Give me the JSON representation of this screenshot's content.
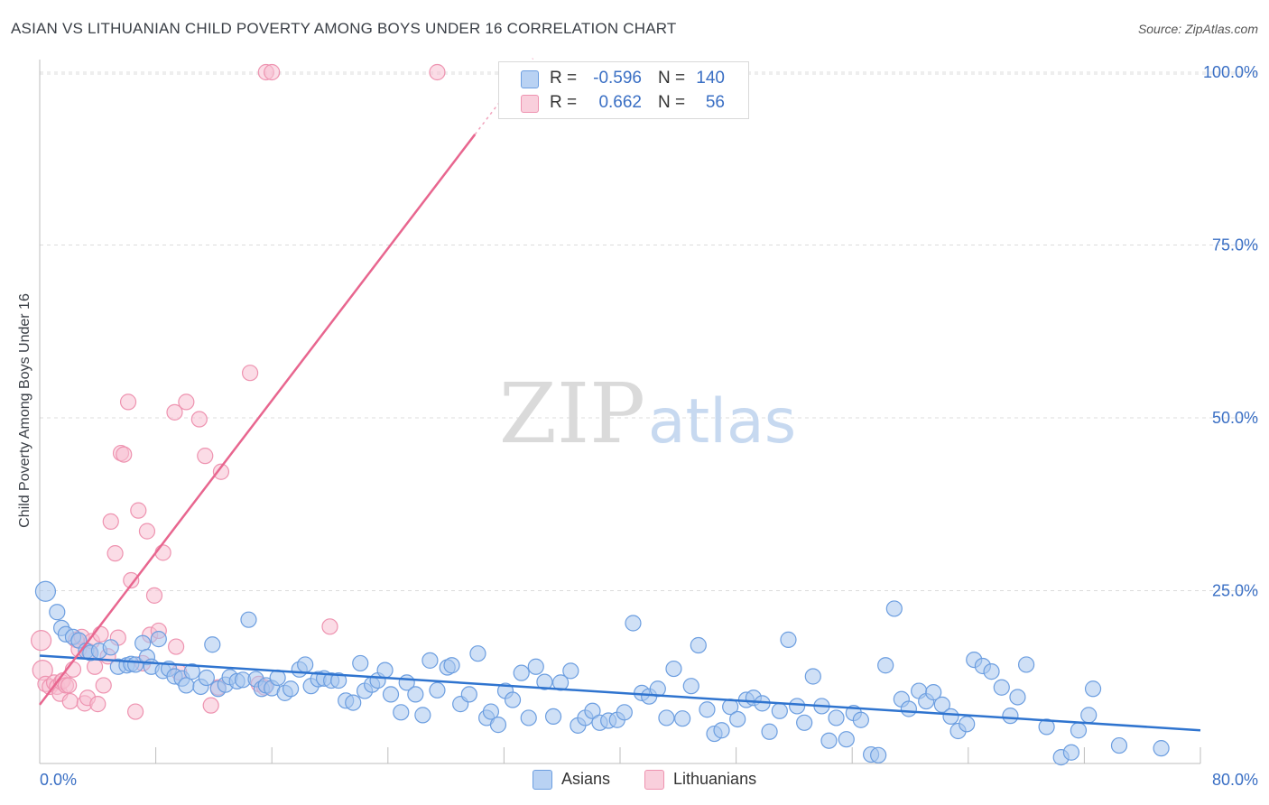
{
  "title": "ASIAN VS LITHUANIAN CHILD POVERTY AMONG BOYS UNDER 16 CORRELATION CHART",
  "source": "Source: ZipAtlas.com",
  "watermark": {
    "zip": "ZIP",
    "atlas": "atlas"
  },
  "legend": {
    "asians": {
      "r_label": "R =",
      "r_value": "-0.596",
      "n_label": "N =",
      "n_value": "140"
    },
    "lithuanians": {
      "r_label": "R =",
      "r_value": "0.662",
      "n_label": "N =",
      "n_value": "56"
    }
  },
  "bottom_legend": {
    "asians": "Asians",
    "lithuanians": "Lithuanians"
  },
  "colors": {
    "asian_fill": "#a8c6ee",
    "asian_stroke": "#6c9ee0",
    "asian_line": "#2f74cf",
    "lith_fill": "#f7c0d1",
    "lith_stroke": "#ee93b0",
    "lith_line": "#e8668f",
    "tick_label": "#3a6fc4",
    "grid": "#dcdcdc"
  },
  "chart_data": {
    "type": "scatter",
    "title": "ASIAN VS LITHUANIAN CHILD POVERTY AMONG BOYS UNDER 16 CORRELATION CHART",
    "xlabel": "",
    "ylabel": "Child Poverty Among Boys Under 16",
    "xlim": [
      0,
      80
    ],
    "ylim": [
      0,
      102
    ],
    "x_tick_labels": [
      "0.0%",
      "80.0%"
    ],
    "y_ticks": [
      25,
      50,
      75,
      100
    ],
    "y_tick_labels": [
      "25.0%",
      "50.0%",
      "75.0%",
      "100.0%"
    ],
    "grid": true,
    "legend_position": "top-center",
    "series": [
      {
        "name": "Asians",
        "r": -0.596,
        "n": 140,
        "trend": {
          "x": [
            0,
            80
          ],
          "y": [
            15.6,
            4.8
          ]
        },
        "points": [
          [
            0.4,
            24.9
          ],
          [
            1.2,
            21.9
          ],
          [
            1.5,
            19.6
          ],
          [
            1.8,
            18.7
          ],
          [
            2.3,
            18.3
          ],
          [
            2.7,
            17.8
          ],
          [
            3.2,
            16.3
          ],
          [
            3.5,
            16.0
          ],
          [
            4.1,
            16.3
          ],
          [
            4.9,
            16.8
          ],
          [
            5.4,
            14.0
          ],
          [
            6.0,
            14.2
          ],
          [
            6.3,
            14.4
          ],
          [
            6.6,
            14.3
          ],
          [
            7.1,
            17.4
          ],
          [
            7.4,
            15.4
          ],
          [
            7.7,
            14.0
          ],
          [
            8.2,
            18.0
          ],
          [
            8.5,
            13.4
          ],
          [
            8.9,
            13.7
          ],
          [
            9.3,
            12.6
          ],
          [
            9.8,
            12.3
          ],
          [
            10.1,
            11.3
          ],
          [
            10.5,
            13.3
          ],
          [
            11.1,
            11.1
          ],
          [
            11.5,
            12.4
          ],
          [
            11.9,
            17.2
          ],
          [
            12.3,
            10.8
          ],
          [
            12.8,
            11.4
          ],
          [
            13.1,
            12.5
          ],
          [
            13.6,
            11.9
          ],
          [
            14.0,
            12.1
          ],
          [
            14.4,
            20.8
          ],
          [
            14.9,
            12.2
          ],
          [
            15.3,
            10.8
          ],
          [
            15.6,
            11.3
          ],
          [
            16.0,
            10.9
          ],
          [
            16.4,
            12.4
          ],
          [
            16.9,
            10.2
          ],
          [
            17.3,
            10.8
          ],
          [
            17.9,
            13.6
          ],
          [
            18.3,
            14.3
          ],
          [
            18.7,
            11.2
          ],
          [
            19.2,
            12.2
          ],
          [
            19.6,
            12.3
          ],
          [
            20.1,
            12.0
          ],
          [
            20.6,
            12.0
          ],
          [
            21.1,
            9.1
          ],
          [
            21.6,
            8.8
          ],
          [
            22.1,
            14.5
          ],
          [
            22.4,
            10.5
          ],
          [
            22.9,
            11.4
          ],
          [
            23.3,
            12.0
          ],
          [
            23.8,
            13.5
          ],
          [
            24.2,
            10.0
          ],
          [
            24.9,
            7.4
          ],
          [
            25.3,
            11.7
          ],
          [
            25.9,
            10.0
          ],
          [
            26.4,
            7.0
          ],
          [
            26.9,
            14.9
          ],
          [
            27.4,
            10.6
          ],
          [
            28.1,
            13.9
          ],
          [
            28.4,
            14.2
          ],
          [
            29.0,
            8.6
          ],
          [
            29.6,
            10.0
          ],
          [
            30.2,
            15.9
          ],
          [
            30.8,
            6.6
          ],
          [
            31.1,
            7.5
          ],
          [
            31.6,
            5.6
          ],
          [
            32.1,
            10.5
          ],
          [
            32.6,
            9.2
          ],
          [
            33.2,
            13.1
          ],
          [
            33.7,
            6.6
          ],
          [
            34.2,
            14.0
          ],
          [
            34.8,
            11.8
          ],
          [
            35.4,
            6.8
          ],
          [
            35.9,
            11.7
          ],
          [
            36.6,
            13.4
          ],
          [
            37.1,
            5.5
          ],
          [
            37.6,
            6.6
          ],
          [
            38.1,
            7.6
          ],
          [
            38.6,
            5.9
          ],
          [
            39.2,
            6.2
          ],
          [
            39.8,
            6.3
          ],
          [
            40.3,
            7.4
          ],
          [
            40.9,
            20.3
          ],
          [
            41.5,
            10.2
          ],
          [
            42.0,
            9.7
          ],
          [
            42.6,
            10.8
          ],
          [
            43.2,
            6.6
          ],
          [
            43.7,
            13.7
          ],
          [
            44.3,
            6.5
          ],
          [
            44.9,
            11.2
          ],
          [
            45.4,
            17.1
          ],
          [
            46.0,
            7.8
          ],
          [
            46.5,
            4.3
          ],
          [
            47.0,
            4.8
          ],
          [
            47.6,
            8.2
          ],
          [
            48.1,
            6.4
          ],
          [
            48.7,
            9.2
          ],
          [
            49.2,
            9.5
          ],
          [
            49.8,
            8.7
          ],
          [
            50.3,
            4.6
          ],
          [
            51.0,
            7.6
          ],
          [
            51.6,
            17.9
          ],
          [
            52.2,
            8.3
          ],
          [
            52.7,
            5.9
          ],
          [
            53.3,
            12.6
          ],
          [
            53.9,
            8.3
          ],
          [
            54.4,
            3.3
          ],
          [
            54.9,
            6.6
          ],
          [
            55.6,
            3.5
          ],
          [
            56.1,
            7.3
          ],
          [
            56.6,
            6.3
          ],
          [
            57.3,
            1.3
          ],
          [
            57.8,
            1.2
          ],
          [
            58.3,
            14.2
          ],
          [
            58.9,
            22.4
          ],
          [
            59.4,
            9.3
          ],
          [
            59.9,
            7.9
          ],
          [
            60.6,
            10.5
          ],
          [
            61.1,
            9.0
          ],
          [
            61.6,
            10.3
          ],
          [
            62.2,
            8.5
          ],
          [
            62.8,
            6.8
          ],
          [
            63.3,
            4.7
          ],
          [
            63.9,
            5.7
          ],
          [
            64.4,
            15.0
          ],
          [
            65.0,
            14.1
          ],
          [
            65.6,
            13.3
          ],
          [
            66.3,
            11.0
          ],
          [
            66.9,
            6.9
          ],
          [
            67.4,
            9.6
          ],
          [
            68.0,
            14.3
          ],
          [
            69.4,
            5.3
          ],
          [
            70.4,
            0.9
          ],
          [
            71.1,
            1.6
          ],
          [
            71.6,
            4.8
          ],
          [
            72.3,
            7.0
          ],
          [
            72.6,
            10.8
          ],
          [
            74.4,
            2.6
          ],
          [
            77.3,
            2.2
          ]
        ]
      },
      {
        "name": "Lithuanians",
        "r": 0.662,
        "n": 56,
        "trend": {
          "x": [
            0,
            30
          ],
          "y": [
            8.5,
            91.0
          ]
        },
        "points": [
          [
            0.1,
            17.8
          ],
          [
            0.2,
            13.5
          ],
          [
            0.4,
            11.5
          ],
          [
            0.7,
            11.1
          ],
          [
            1.0,
            11.7
          ],
          [
            1.2,
            11.1
          ],
          [
            1.4,
            10.1
          ],
          [
            1.5,
            11.8
          ],
          [
            1.6,
            12.0
          ],
          [
            1.8,
            11.3
          ],
          [
            2.0,
            11.3
          ],
          [
            2.1,
            9.0
          ],
          [
            2.3,
            13.6
          ],
          [
            2.5,
            17.9
          ],
          [
            2.7,
            16.5
          ],
          [
            2.9,
            18.3
          ],
          [
            3.1,
            8.7
          ],
          [
            3.3,
            9.5
          ],
          [
            3.4,
            16.2
          ],
          [
            3.6,
            17.7
          ],
          [
            3.8,
            14.0
          ],
          [
            4.0,
            8.6
          ],
          [
            4.2,
            18.7
          ],
          [
            4.4,
            11.3
          ],
          [
            4.7,
            15.5
          ],
          [
            4.9,
            35.0
          ],
          [
            5.2,
            30.4
          ],
          [
            5.4,
            18.2
          ],
          [
            5.6,
            44.9
          ],
          [
            5.8,
            44.7
          ],
          [
            6.1,
            52.3
          ],
          [
            6.3,
            26.5
          ],
          [
            6.6,
            7.5
          ],
          [
            6.8,
            36.6
          ],
          [
            7.1,
            14.5
          ],
          [
            7.4,
            33.6
          ],
          [
            7.6,
            18.6
          ],
          [
            7.9,
            24.3
          ],
          [
            8.2,
            19.2
          ],
          [
            8.5,
            30.5
          ],
          [
            9.3,
            50.8
          ],
          [
            9.4,
            16.9
          ],
          [
            9.6,
            13.2
          ],
          [
            10.1,
            52.3
          ],
          [
            11.0,
            49.8
          ],
          [
            11.4,
            44.5
          ],
          [
            11.8,
            8.4
          ],
          [
            12.3,
            11.0
          ],
          [
            12.5,
            42.2
          ],
          [
            14.5,
            56.5
          ],
          [
            15.1,
            11.5
          ],
          [
            15.5,
            11.0
          ],
          [
            15.6,
            100.0
          ],
          [
            16.0,
            100.0
          ],
          [
            20.0,
            19.8
          ],
          [
            27.4,
            100.0
          ]
        ]
      }
    ]
  }
}
